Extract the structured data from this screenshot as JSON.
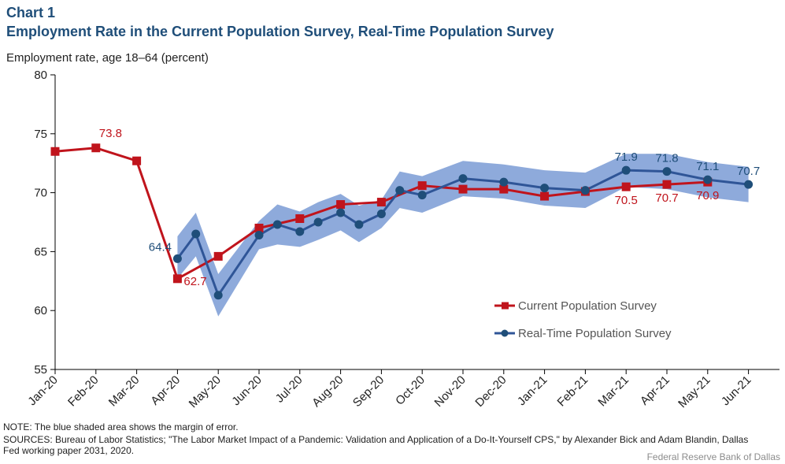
{
  "header": {
    "chart_number": "Chart 1",
    "title": "Employment Rate in the Current Population Survey, Real-Time Population Survey",
    "unit_label": "Employment rate, age 18–64 (percent)"
  },
  "footer": {
    "note": "NOTE: The blue shaded area shows the margin of error.",
    "sources": "SOURCES: Bureau of Labor Statistics; \"The Labor Market Impact of a Pandemic: Validation and Application of a Do-It-Yourself CPS,\" by Alexander Bick and Adam Blandin, Dallas Fed working paper 2031, 2020.",
    "credit": "Federal Reserve Bank of Dallas"
  },
  "colors": {
    "cps": "#c0141c",
    "rtps": "#1f4e79",
    "band": "#8eaadb",
    "title": "#1f4e79"
  },
  "chart_data": {
    "type": "line",
    "title": "Employment Rate in the Current Population Survey, Real-Time Population Survey",
    "xlabel": "",
    "ylabel": "Employment rate, age 18–64 (percent)",
    "ylim": [
      55,
      80
    ],
    "yticks": [
      55,
      60,
      65,
      70,
      75,
      80
    ],
    "grid": false,
    "legend_position": "bottom-right",
    "categories": [
      "Jan-20",
      "Feb-20",
      "Mar-20",
      "Apr-20",
      "May-20",
      "Jun-20",
      "Jul-20",
      "Aug-20",
      "Sep-20",
      "Oct-20",
      "Nov-20",
      "Dec-20",
      "Jan-21",
      "Feb-21",
      "Mar-21",
      "Apr-21",
      "May-21",
      "Jun-21"
    ],
    "series": [
      {
        "name": "Current Population Survey",
        "x": [
          0,
          1,
          2,
          3,
          4,
          5,
          6,
          7,
          8,
          9,
          10,
          11,
          12,
          13,
          14,
          15,
          16
        ],
        "values": [
          73.5,
          73.8,
          72.7,
          62.7,
          64.6,
          67.0,
          67.8,
          69.0,
          69.2,
          70.6,
          70.3,
          70.3,
          69.7,
          70.1,
          70.5,
          70.7,
          70.9
        ],
        "labels": {
          "1": "73.8",
          "3": "62.7",
          "14": "70.5",
          "15": "70.7",
          "16": "70.9"
        }
      },
      {
        "name": "Real-Time Population Survey",
        "x": [
          3,
          3.45,
          4,
          5,
          5.45,
          6,
          6.45,
          7,
          7.45,
          8,
          8.45,
          9,
          10,
          11,
          12,
          13,
          14,
          15,
          16,
          17
        ],
        "values": [
          64.4,
          66.5,
          61.3,
          66.4,
          67.3,
          66.7,
          67.5,
          68.3,
          67.3,
          68.2,
          70.2,
          69.8,
          71.2,
          70.9,
          70.4,
          70.2,
          71.9,
          71.8,
          71.1,
          70.7
        ],
        "band_upper": [
          66.3,
          68.3,
          63.1,
          67.6,
          69.0,
          68.4,
          69.2,
          69.9,
          68.9,
          69.4,
          71.8,
          71.4,
          72.7,
          72.4,
          71.9,
          71.7,
          73.3,
          73.3,
          72.6,
          72.2
        ],
        "band_lower": [
          62.7,
          64.6,
          59.5,
          65.2,
          65.6,
          65.4,
          66.0,
          66.8,
          65.8,
          67.0,
          68.7,
          68.3,
          69.7,
          69.5,
          68.9,
          68.7,
          70.5,
          70.3,
          69.6,
          69.2
        ],
        "labels": {
          "0": "64.4",
          "16": "71.9",
          "17": "71.8",
          "18": "71.1",
          "19": "70.7"
        }
      }
    ]
  }
}
